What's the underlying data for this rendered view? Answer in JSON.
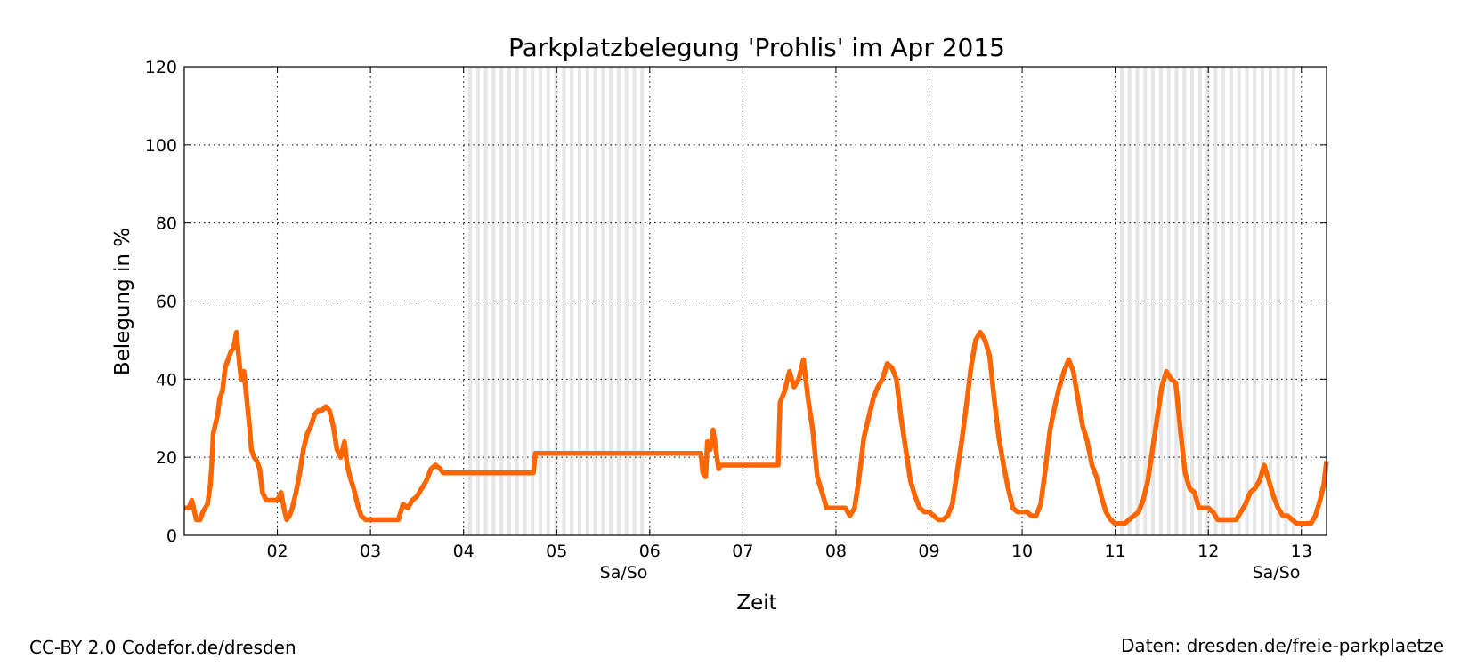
{
  "chart_data": {
    "type": "line",
    "title": "Parkplatzbelegung 'Prohlis' im Apr 2015",
    "xlabel": "Zeit",
    "ylabel": "Belegung in %",
    "xlim": [
      1.0,
      13.27
    ],
    "ylim": [
      0,
      120
    ],
    "y_ticks": [
      0,
      20,
      40,
      60,
      80,
      100,
      120
    ],
    "x_ticks": [
      {
        "pos": 2,
        "label": "02"
      },
      {
        "pos": 3,
        "label": "03"
      },
      {
        "pos": 4,
        "label": "04"
      },
      {
        "pos": 5,
        "label": "05"
      },
      {
        "pos": 6,
        "label": "06"
      },
      {
        "pos": 7,
        "label": "07"
      },
      {
        "pos": 8,
        "label": "08"
      },
      {
        "pos": 9,
        "label": "09"
      },
      {
        "pos": 10,
        "label": "10"
      },
      {
        "pos": 11,
        "label": "11"
      },
      {
        "pos": 12,
        "label": "12"
      },
      {
        "pos": 13,
        "label": "13"
      }
    ],
    "weekend_labels": [
      {
        "pos": 5.72,
        "label": "Sa/So"
      },
      {
        "pos": 12.73,
        "label": "Sa/So"
      }
    ],
    "weekend_ranges": [
      [
        4.05,
        5.95
      ],
      [
        11.05,
        12.95
      ]
    ],
    "grid": true,
    "line_color": "#ff6600",
    "shade_color": "#e6e6e6",
    "series": [
      {
        "points": [
          [
            1.0,
            7
          ],
          [
            1.05,
            7
          ],
          [
            1.08,
            9
          ],
          [
            1.1,
            7
          ],
          [
            1.13,
            4
          ],
          [
            1.17,
            4
          ],
          [
            1.2,
            6
          ],
          [
            1.25,
            8
          ],
          [
            1.28,
            13
          ],
          [
            1.3,
            20
          ],
          [
            1.31,
            26
          ],
          [
            1.33,
            28
          ],
          [
            1.36,
            31
          ],
          [
            1.38,
            35
          ],
          [
            1.41,
            37
          ],
          [
            1.44,
            43
          ],
          [
            1.47,
            45
          ],
          [
            1.5,
            47
          ],
          [
            1.53,
            48
          ],
          [
            1.56,
            52
          ],
          [
            1.58,
            47
          ],
          [
            1.61,
            40
          ],
          [
            1.64,
            42
          ],
          [
            1.67,
            35
          ],
          [
            1.7,
            28
          ],
          [
            1.72,
            22
          ],
          [
            1.75,
            20
          ],
          [
            1.78,
            19
          ],
          [
            1.81,
            17
          ],
          [
            1.84,
            11
          ],
          [
            1.88,
            9
          ],
          [
            1.95,
            9
          ],
          [
            2.0,
            9
          ],
          [
            2.04,
            11
          ],
          [
            2.07,
            7
          ],
          [
            2.1,
            4
          ],
          [
            2.13,
            5
          ],
          [
            2.16,
            7
          ],
          [
            2.2,
            11
          ],
          [
            2.24,
            16
          ],
          [
            2.28,
            22
          ],
          [
            2.32,
            26
          ],
          [
            2.36,
            28
          ],
          [
            2.4,
            31
          ],
          [
            2.44,
            32
          ],
          [
            2.48,
            32
          ],
          [
            2.52,
            33
          ],
          [
            2.56,
            32
          ],
          [
            2.6,
            28
          ],
          [
            2.64,
            22
          ],
          [
            2.68,
            20
          ],
          [
            2.72,
            24
          ],
          [
            2.75,
            18
          ],
          [
            2.78,
            15
          ],
          [
            2.82,
            12
          ],
          [
            2.86,
            8
          ],
          [
            2.9,
            5
          ],
          [
            2.95,
            4
          ],
          [
            3.0,
            4
          ],
          [
            3.1,
            4
          ],
          [
            3.2,
            4
          ],
          [
            3.3,
            4
          ],
          [
            3.35,
            8
          ],
          [
            3.4,
            7
          ],
          [
            3.45,
            9
          ],
          [
            3.5,
            10
          ],
          [
            3.55,
            12
          ],
          [
            3.6,
            14
          ],
          [
            3.65,
            17
          ],
          [
            3.7,
            18
          ],
          [
            3.75,
            17
          ],
          [
            3.78,
            16
          ],
          [
            4.0,
            16
          ],
          [
            4.3,
            16
          ],
          [
            4.75,
            16
          ],
          [
            4.77,
            21
          ],
          [
            5.2,
            21
          ],
          [
            5.8,
            21
          ],
          [
            6.2,
            21
          ],
          [
            6.55,
            21
          ],
          [
            6.57,
            16
          ],
          [
            6.6,
            15
          ],
          [
            6.62,
            24
          ],
          [
            6.65,
            22
          ],
          [
            6.68,
            27
          ],
          [
            6.71,
            22
          ],
          [
            6.74,
            17
          ],
          [
            6.76,
            18
          ],
          [
            7.0,
            18
          ],
          [
            7.2,
            18
          ],
          [
            7.38,
            18
          ],
          [
            7.4,
            34
          ],
          [
            7.45,
            37
          ],
          [
            7.5,
            42
          ],
          [
            7.55,
            38
          ],
          [
            7.6,
            40
          ],
          [
            7.65,
            45
          ],
          [
            7.7,
            35
          ],
          [
            7.75,
            27
          ],
          [
            7.8,
            15
          ],
          [
            7.85,
            11
          ],
          [
            7.9,
            7
          ],
          [
            8.0,
            7
          ],
          [
            8.05,
            7
          ],
          [
            8.1,
            7
          ],
          [
            8.15,
            5
          ],
          [
            8.2,
            7
          ],
          [
            8.25,
            15
          ],
          [
            8.3,
            25
          ],
          [
            8.35,
            30
          ],
          [
            8.4,
            35
          ],
          [
            8.45,
            38
          ],
          [
            8.5,
            40
          ],
          [
            8.55,
            44
          ],
          [
            8.6,
            43
          ],
          [
            8.65,
            40
          ],
          [
            8.7,
            30
          ],
          [
            8.75,
            22
          ],
          [
            8.8,
            14
          ],
          [
            8.85,
            10
          ],
          [
            8.9,
            7
          ],
          [
            8.95,
            6
          ],
          [
            9.0,
            6
          ],
          [
            9.05,
            5
          ],
          [
            9.1,
            4
          ],
          [
            9.15,
            4
          ],
          [
            9.2,
            5
          ],
          [
            9.25,
            8
          ],
          [
            9.3,
            16
          ],
          [
            9.35,
            24
          ],
          [
            9.4,
            33
          ],
          [
            9.45,
            43
          ],
          [
            9.5,
            50
          ],
          [
            9.55,
            52
          ],
          [
            9.6,
            50
          ],
          [
            9.65,
            46
          ],
          [
            9.7,
            35
          ],
          [
            9.75,
            25
          ],
          [
            9.8,
            18
          ],
          [
            9.85,
            12
          ],
          [
            9.9,
            7
          ],
          [
            9.95,
            6
          ],
          [
            10.0,
            6
          ],
          [
            10.05,
            6
          ],
          [
            10.1,
            5
          ],
          [
            10.15,
            5
          ],
          [
            10.2,
            8
          ],
          [
            10.25,
            17
          ],
          [
            10.3,
            27
          ],
          [
            10.35,
            33
          ],
          [
            10.4,
            38
          ],
          [
            10.45,
            42
          ],
          [
            10.5,
            45
          ],
          [
            10.55,
            42
          ],
          [
            10.6,
            35
          ],
          [
            10.65,
            28
          ],
          [
            10.7,
            24
          ],
          [
            10.75,
            18
          ],
          [
            10.8,
            15
          ],
          [
            10.85,
            10
          ],
          [
            10.9,
            6
          ],
          [
            10.95,
            4
          ],
          [
            11.0,
            3
          ],
          [
            11.05,
            3
          ],
          [
            11.1,
            3
          ],
          [
            11.15,
            4
          ],
          [
            11.2,
            5
          ],
          [
            11.25,
            6
          ],
          [
            11.3,
            9
          ],
          [
            11.35,
            14
          ],
          [
            11.4,
            22
          ],
          [
            11.45,
            30
          ],
          [
            11.5,
            38
          ],
          [
            11.55,
            42
          ],
          [
            11.6,
            40
          ],
          [
            11.65,
            39
          ],
          [
            11.7,
            27
          ],
          [
            11.75,
            16
          ],
          [
            11.8,
            12
          ],
          [
            11.85,
            11
          ],
          [
            11.9,
            7
          ],
          [
            11.95,
            7
          ],
          [
            12.0,
            7
          ],
          [
            12.05,
            6
          ],
          [
            12.1,
            4
          ],
          [
            12.15,
            4
          ],
          [
            12.2,
            4
          ],
          [
            12.25,
            4
          ],
          [
            12.3,
            4
          ],
          [
            12.35,
            6
          ],
          [
            12.4,
            8
          ],
          [
            12.45,
            11
          ],
          [
            12.5,
            12
          ],
          [
            12.55,
            14
          ],
          [
            12.6,
            18
          ],
          [
            12.65,
            14
          ],
          [
            12.7,
            10
          ],
          [
            12.75,
            7
          ],
          [
            12.8,
            5
          ],
          [
            12.85,
            5
          ],
          [
            12.9,
            4
          ],
          [
            12.95,
            3
          ],
          [
            13.0,
            3
          ],
          [
            13.05,
            3
          ],
          [
            13.1,
            3
          ],
          [
            13.15,
            5
          ],
          [
            13.2,
            9
          ],
          [
            13.24,
            13
          ],
          [
            13.27,
            19
          ]
        ]
      }
    ]
  },
  "footer": {
    "left": "CC-BY 2.0 Codefor.de/dresden",
    "right": "Daten: dresden.de/freie-parkplaetze"
  }
}
